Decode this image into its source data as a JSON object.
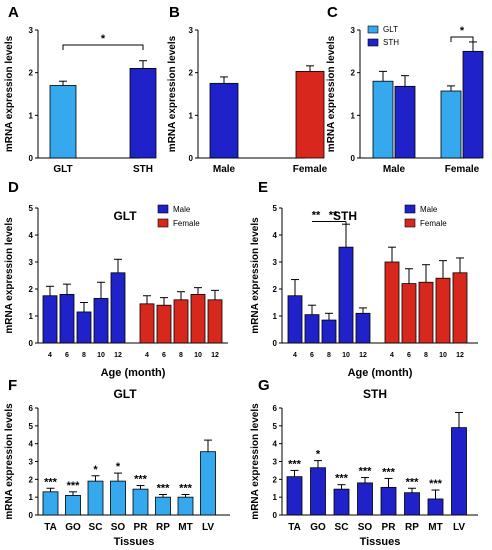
{
  "colors": {
    "light_blue": "#35a8ee",
    "dark_blue": "#1e22c8",
    "red": "#d8281e",
    "axis": "#000000"
  },
  "chart_data": [
    {
      "id": "A",
      "panel_label": "A",
      "type": "bar",
      "title": "",
      "xlabel": "",
      "ylabel": "mRNA expression levels",
      "ylim": [
        0,
        3
      ],
      "yticks": [
        "0",
        "1",
        "2",
        "3"
      ],
      "categories": [
        "GLT",
        "STH"
      ],
      "values": [
        1.7,
        2.1
      ],
      "errors": [
        0.1,
        0.18
      ],
      "colors": [
        "#35a8ee",
        "#1e22c8"
      ],
      "significance": [
        {
          "from": 0,
          "to": 1,
          "label": "*"
        }
      ]
    },
    {
      "id": "B",
      "panel_label": "B",
      "type": "bar",
      "title": "",
      "xlabel": "",
      "ylabel": "mRNA expression levels",
      "ylim": [
        0,
        3
      ],
      "yticks": [
        "0",
        "1",
        "2",
        "3"
      ],
      "categories": [
        "Male",
        "Female"
      ],
      "values": [
        1.75,
        2.03
      ],
      "errors": [
        0.15,
        0.13
      ],
      "colors": [
        "#1e22c8",
        "#d8281e"
      ]
    },
    {
      "id": "C",
      "panel_label": "C",
      "type": "bar",
      "title": "",
      "xlabel": "",
      "ylabel": "mRNA expression levels",
      "ylim": [
        0,
        3
      ],
      "yticks": [
        "0",
        "1",
        "2",
        "3"
      ],
      "categories": [
        "Male",
        "Female"
      ],
      "series": [
        {
          "name": "GLT",
          "color": "#35a8ee",
          "values": [
            1.8,
            1.57
          ],
          "errors": [
            0.23,
            0.12
          ]
        },
        {
          "name": "STH",
          "color": "#1e22c8",
          "values": [
            1.68,
            2.5
          ],
          "errors": [
            0.25,
            0.22
          ]
        }
      ],
      "legend": "top-left",
      "significance": [
        {
          "group": 1,
          "label": "*"
        }
      ]
    },
    {
      "id": "D",
      "panel_label": "D",
      "type": "bar",
      "title": "GLT",
      "xlabel": "Age (month)",
      "ylabel": "mRNA expression levels",
      "ylim": [
        0,
        5
      ],
      "yticks": [
        "0",
        "1",
        "2",
        "3",
        "4",
        "5"
      ],
      "categories": [
        "4",
        "6",
        "8",
        "10",
        "12"
      ],
      "series": [
        {
          "name": "Male",
          "color": "#1e22c8",
          "values": [
            1.75,
            1.8,
            1.15,
            1.65,
            2.6
          ],
          "errors": [
            0.35,
            0.38,
            0.35,
            0.6,
            0.5
          ]
        },
        {
          "name": "Female",
          "color": "#d8281e",
          "values": [
            1.45,
            1.4,
            1.6,
            1.8,
            1.6
          ],
          "errors": [
            0.3,
            0.28,
            0.3,
            0.25,
            0.35
          ]
        }
      ],
      "legend": "top-right"
    },
    {
      "id": "E",
      "panel_label": "E",
      "type": "bar",
      "title": "STH",
      "xlabel": "Age (month)",
      "ylabel": "mRNA expression levels",
      "ylim": [
        0,
        5
      ],
      "yticks": [
        "0",
        "1",
        "2",
        "3",
        "4",
        "5"
      ],
      "categories": [
        "4",
        "6",
        "8",
        "10",
        "12"
      ],
      "series": [
        {
          "name": "Male",
          "color": "#1e22c8",
          "values": [
            1.75,
            1.05,
            0.85,
            3.55,
            1.1
          ],
          "errors": [
            0.6,
            0.35,
            0.25,
            0.85,
            0.2
          ]
        },
        {
          "name": "Female",
          "color": "#d8281e",
          "values": [
            3.0,
            2.2,
            2.25,
            2.4,
            2.6
          ],
          "errors": [
            0.55,
            0.55,
            0.65,
            0.65,
            0.55
          ]
        }
      ],
      "legend": "top-right",
      "significance": [
        {
          "from": 1,
          "to": 3,
          "label": "**"
        },
        {
          "from": 2,
          "to": 3,
          "label": "**"
        }
      ]
    },
    {
      "id": "F",
      "panel_label": "F",
      "type": "bar",
      "title": "GLT",
      "xlabel": "Tissues",
      "ylabel": "mRNA expression levels",
      "ylim": [
        0,
        6
      ],
      "yticks": [
        "0",
        "1",
        "2",
        "3",
        "4",
        "5",
        "6"
      ],
      "categories": [
        "TA",
        "GO",
        "SC",
        "SO",
        "PR",
        "RP",
        "MT",
        "LV"
      ],
      "values": [
        1.3,
        1.1,
        1.9,
        1.9,
        1.45,
        1.0,
        1.0,
        3.55
      ],
      "errors": [
        0.2,
        0.2,
        0.3,
        0.45,
        0.2,
        0.15,
        0.15,
        0.65
      ],
      "color": "#35a8ee",
      "annotations": [
        "***",
        "***",
        "*",
        "*",
        "***",
        "***",
        "***",
        ""
      ]
    },
    {
      "id": "G",
      "panel_label": "G",
      "type": "bar",
      "title": "STH",
      "xlabel": "Tissues",
      "ylabel": "mRNA expression levels",
      "ylim": [
        0,
        6
      ],
      "yticks": [
        "0",
        "1",
        "2",
        "3",
        "4",
        "5",
        "6"
      ],
      "categories": [
        "TA",
        "GO",
        "SC",
        "SO",
        "PR",
        "RP",
        "MT",
        "LV"
      ],
      "values": [
        2.15,
        2.65,
        1.45,
        1.8,
        1.55,
        1.25,
        0.9,
        4.9
      ],
      "errors": [
        0.35,
        0.4,
        0.25,
        0.3,
        0.5,
        0.25,
        0.5,
        0.85
      ],
      "color": "#1e22c8",
      "annotations": [
        "***",
        "*",
        "***",
        "***",
        "***",
        "***",
        "***",
        ""
      ]
    }
  ]
}
